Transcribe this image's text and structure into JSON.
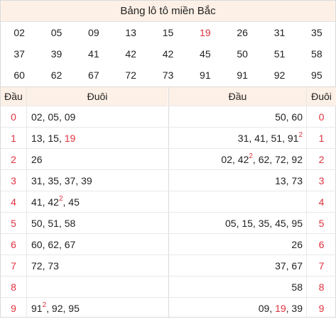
{
  "title": "Bảng lô tô miền Bắc",
  "prizes": [
    [
      "02",
      "05",
      "09",
      "13",
      "15",
      "19",
      "26",
      "31",
      "35"
    ],
    [
      "37",
      "39",
      "41",
      "42",
      "42",
      "45",
      "50",
      "51",
      "58"
    ],
    [
      "60",
      "62",
      "67",
      "72",
      "73",
      "91",
      "91",
      "92",
      "95"
    ]
  ],
  "highlight_prize": "19",
  "left_table": {
    "head_label": "Đầu",
    "tail_label": "Đuôi",
    "rows": [
      {
        "head": "0",
        "values": [
          {
            "v": "02"
          },
          {
            "v": "05"
          },
          {
            "v": "09"
          }
        ]
      },
      {
        "head": "1",
        "values": [
          {
            "v": "13"
          },
          {
            "v": "15"
          },
          {
            "v": "19",
            "hl": true
          }
        ]
      },
      {
        "head": "2",
        "values": [
          {
            "v": "26"
          }
        ]
      },
      {
        "head": "3",
        "values": [
          {
            "v": "31"
          },
          {
            "v": "35"
          },
          {
            "v": "37"
          },
          {
            "v": "39"
          }
        ]
      },
      {
        "head": "4",
        "values": [
          {
            "v": "41"
          },
          {
            "v": "42",
            "sup": "2"
          },
          {
            "v": "45"
          }
        ]
      },
      {
        "head": "5",
        "values": [
          {
            "v": "50"
          },
          {
            "v": "51"
          },
          {
            "v": "58"
          }
        ]
      },
      {
        "head": "6",
        "values": [
          {
            "v": "60"
          },
          {
            "v": "62"
          },
          {
            "v": "67"
          }
        ]
      },
      {
        "head": "7",
        "values": [
          {
            "v": "72"
          },
          {
            "v": "73"
          }
        ]
      },
      {
        "head": "8",
        "values": []
      },
      {
        "head": "9",
        "values": [
          {
            "v": "91",
            "sup": "2"
          },
          {
            "v": "92"
          },
          {
            "v": "95"
          }
        ]
      }
    ]
  },
  "right_table": {
    "head_label": "Đầu",
    "tail_label": "Đuôi",
    "rows": [
      {
        "tail": "0",
        "values": [
          {
            "v": "50"
          },
          {
            "v": "60"
          }
        ]
      },
      {
        "tail": "1",
        "values": [
          {
            "v": "31"
          },
          {
            "v": "41"
          },
          {
            "v": "51"
          },
          {
            "v": "91",
            "sup": "2"
          }
        ]
      },
      {
        "tail": "2",
        "values": [
          {
            "v": "02"
          },
          {
            "v": "42",
            "sup": "2"
          },
          {
            "v": "62"
          },
          {
            "v": "72"
          },
          {
            "v": "92"
          }
        ]
      },
      {
        "tail": "3",
        "values": [
          {
            "v": "13"
          },
          {
            "v": "73"
          }
        ]
      },
      {
        "tail": "4",
        "values": []
      },
      {
        "tail": "5",
        "values": [
          {
            "v": "05"
          },
          {
            "v": "15"
          },
          {
            "v": "35"
          },
          {
            "v": "45"
          },
          {
            "v": "95"
          }
        ]
      },
      {
        "tail": "6",
        "values": [
          {
            "v": "26"
          }
        ]
      },
      {
        "tail": "7",
        "values": [
          {
            "v": "37"
          },
          {
            "v": "67"
          }
        ]
      },
      {
        "tail": "8",
        "values": [
          {
            "v": "58"
          }
        ]
      },
      {
        "tail": "9",
        "values": [
          {
            "v": "09"
          },
          {
            "v": "19",
            "hl": true
          },
          {
            "v": "39"
          }
        ]
      }
    ]
  },
  "colors": {
    "accent_red": "#e0313f",
    "header_bg": "#fdf0e6",
    "border": "#d9d9d9"
  }
}
